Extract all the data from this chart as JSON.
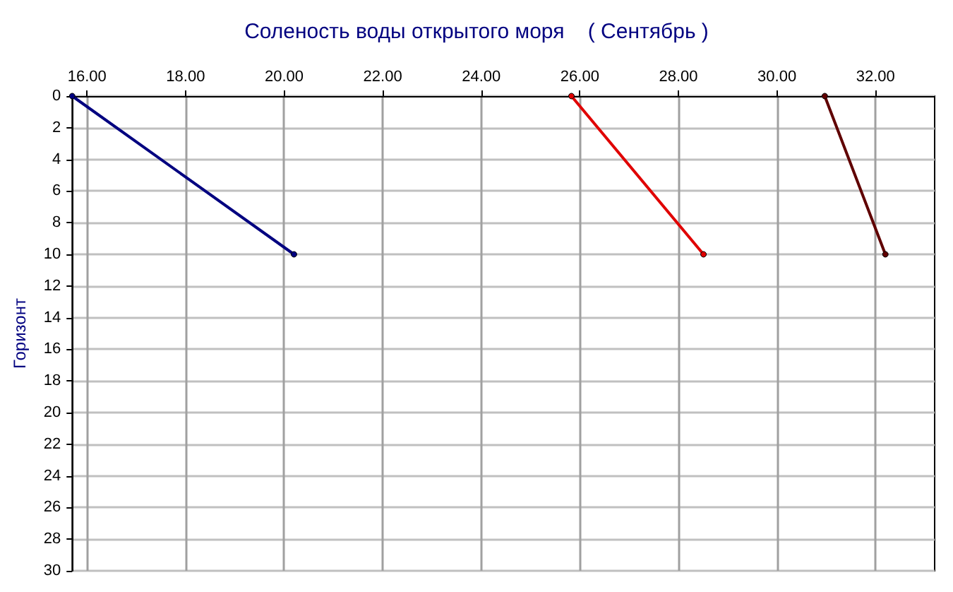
{
  "chart_data": {
    "type": "line",
    "title": "Соленость воды открытого моря    ( Сентябрь )",
    "ylabel": "Горизонт",
    "series": [
      {
        "color": "#000080",
        "x": [
          15.7,
          20.2
        ],
        "values": [
          0,
          10
        ]
      },
      {
        "color": "#e00000",
        "x": [
          25.83,
          28.51
        ],
        "values": [
          0,
          10
        ]
      },
      {
        "color": "#600000",
        "x": [
          30.97,
          32.2
        ],
        "values": [
          0,
          10
        ]
      }
    ],
    "xlim": [
      15.7,
      33.2
    ],
    "xticks": [
      {
        "value": 16,
        "label": "16.00"
      },
      {
        "value": 18,
        "label": "18.00"
      },
      {
        "value": 20,
        "label": "20.00"
      },
      {
        "value": 22,
        "label": "22.00"
      },
      {
        "value": 24,
        "label": "24.00"
      },
      {
        "value": 26,
        "label": "26.00"
      },
      {
        "value": 28,
        "label": "28.00"
      },
      {
        "value": 30,
        "label": "30.00"
      },
      {
        "value": 32,
        "label": "32.00"
      }
    ],
    "ylim": [
      30,
      0
    ],
    "yticks": [
      0,
      2,
      4,
      6,
      8,
      10,
      12,
      14,
      16,
      18,
      20,
      22,
      24,
      26,
      28,
      30
    ],
    "grid": true,
    "marker": "circle",
    "line_style": "solid"
  }
}
